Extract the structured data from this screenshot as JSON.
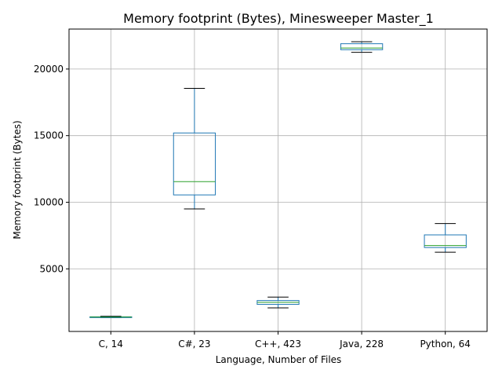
{
  "chart_data": {
    "type": "box",
    "title": "Memory footprint (Bytes), Minesweeper Master_1",
    "xlabel": "Language, Number of Files",
    "ylabel": "Memory footprint (Bytes)",
    "ylim": [
      300,
      23000
    ],
    "yticks": [
      5000,
      10000,
      15000,
      20000
    ],
    "grid": true,
    "categories": [
      "C, 14",
      "C#, 23",
      "C++, 423",
      "Java, 228",
      "Python, 64"
    ],
    "boxes": [
      {
        "whisker_low": 1330,
        "q1": 1360,
        "median": 1380,
        "q3": 1400,
        "whisker_high": 1440
      },
      {
        "whisker_low": 9500,
        "q1": 10550,
        "median": 11550,
        "q3": 15200,
        "whisker_high": 18550
      },
      {
        "whisker_low": 2070,
        "q1": 2330,
        "median": 2480,
        "q3": 2620,
        "whisker_high": 2880
      },
      {
        "whisker_low": 21250,
        "q1": 21450,
        "median": 21580,
        "q3": 21900,
        "whisker_high": 22050
      },
      {
        "whisker_low": 6250,
        "q1": 6600,
        "median": 6750,
        "q3": 7550,
        "whisker_high": 8400
      }
    ],
    "colors": {
      "box": "#1f77b4",
      "median": "#2ca02c",
      "cap": "#000000",
      "grid": "#b0b0b0"
    }
  }
}
